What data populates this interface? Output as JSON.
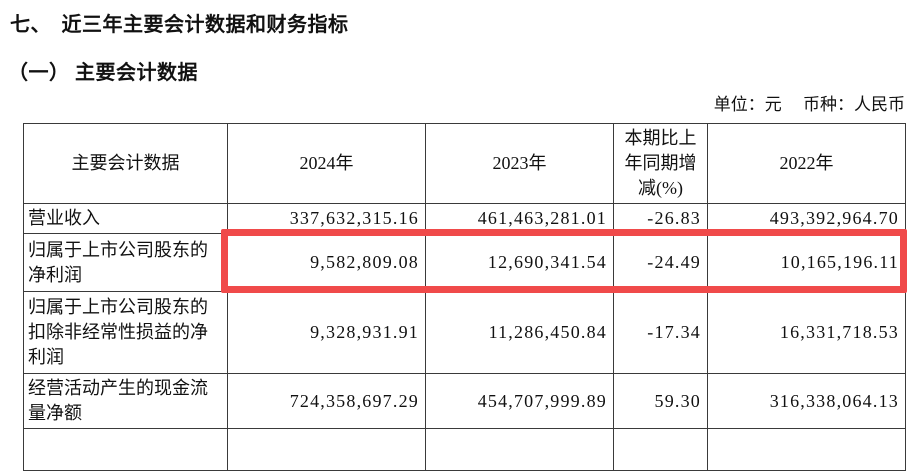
{
  "page": {
    "section_title": "七、　近三年主要会计数据和财务指标",
    "subsection_title": "（一） 主要会计数据",
    "unit_note": "单位：元　 币种：人民币"
  },
  "table": {
    "columns": [
      "主要会计数据",
      "2024年",
      "2023年",
      "本期比上年同期增减(%)",
      "2022年"
    ],
    "rows": [
      {
        "label": "营业收入",
        "v2024": "337,632,315.16",
        "v2023": "461,463,281.01",
        "change": "-26.83",
        "v2022": "493,392,964.70",
        "highlighted": false
      },
      {
        "label": "归属于上市公司股东的净利润",
        "v2024": "9,582,809.08",
        "v2023": "12,690,341.54",
        "change": "-24.49",
        "v2022": "10,165,196.11",
        "highlighted": true
      },
      {
        "label": "归属于上市公司股东的扣除非经常性损益的净利润",
        "v2024": "9,328,931.91",
        "v2023": "11,286,450.84",
        "change": "-17.34",
        "v2022": "16,331,718.53",
        "highlighted": false
      },
      {
        "label": "经营活动产生的现金流量净额",
        "v2024": "724,358,697.29",
        "v2023": "454,707,999.89",
        "change": "59.30",
        "v2022": "316,338,064.13",
        "highlighted": false
      }
    ],
    "highlight_color": "#f04a4a"
  }
}
